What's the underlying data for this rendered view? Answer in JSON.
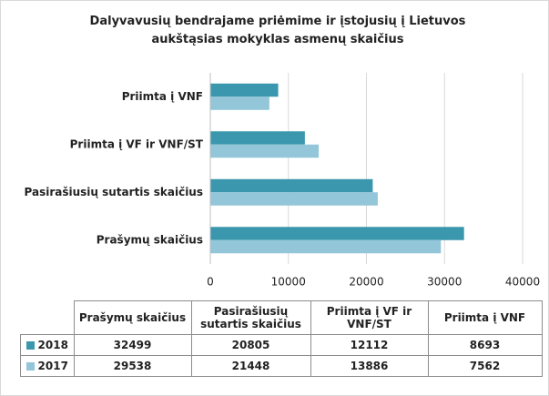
{
  "chart_data": {
    "type": "bar",
    "orientation": "horizontal",
    "title": "Dalyvavusių bendrajame priėmime ir įstojusių į Lietuvos aukštąsias mokyklas asmenų skaičius",
    "categories": [
      "Prašymų skaičius",
      "Pasirašiusių sutartis skaičius",
      "Priimta į VF ir VNF/ST",
      "Priimta į VNF"
    ],
    "series": [
      {
        "name": "2018",
        "color": "#3a97ad",
        "values": [
          32499,
          20805,
          12112,
          8693
        ]
      },
      {
        "name": "2017",
        "color": "#93c6d8",
        "values": [
          29538,
          21448,
          13886,
          7562
        ]
      }
    ],
    "xlim": [
      0,
      40000
    ],
    "xticks": [
      0,
      10000,
      20000,
      30000,
      40000
    ],
    "grid": true,
    "legend": "bottom"
  }
}
